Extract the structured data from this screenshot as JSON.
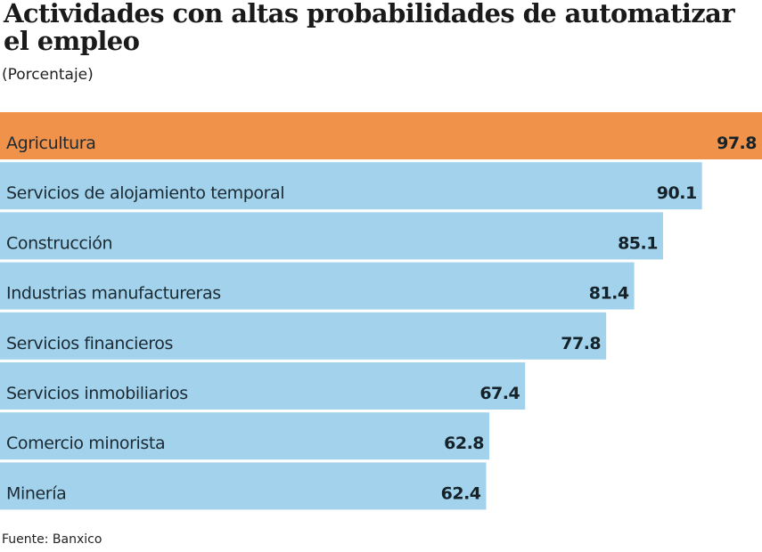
{
  "chart_data": {
    "type": "bar",
    "orientation": "horizontal",
    "title": "Actividades con altas probabilidades de automatizar el empleo",
    "subtitle": "(Porcentaje)",
    "xlabel": "",
    "ylabel": "",
    "xlim": [
      0,
      97.8
    ],
    "grid": false,
    "legend": "none",
    "categories": [
      "Agricultura",
      "Servicios de alojamiento temporal",
      "Construcción",
      "Industrias manufactureras",
      "Servicios financieros",
      "Servicios inmobiliarios",
      "Comercio minorista",
      "Minería"
    ],
    "values": [
      97.8,
      90.1,
      85.1,
      81.4,
      77.8,
      67.4,
      62.8,
      62.4
    ],
    "value_labels": [
      "97.8",
      "90.1",
      "85.1",
      "81.4",
      "77.8",
      "67.4",
      "62.8",
      "62.4"
    ],
    "highlight_index": 0,
    "colors": {
      "highlight": "#f0924a",
      "default": "#a3d3ec"
    },
    "source": "Fuente: Banxico"
  }
}
